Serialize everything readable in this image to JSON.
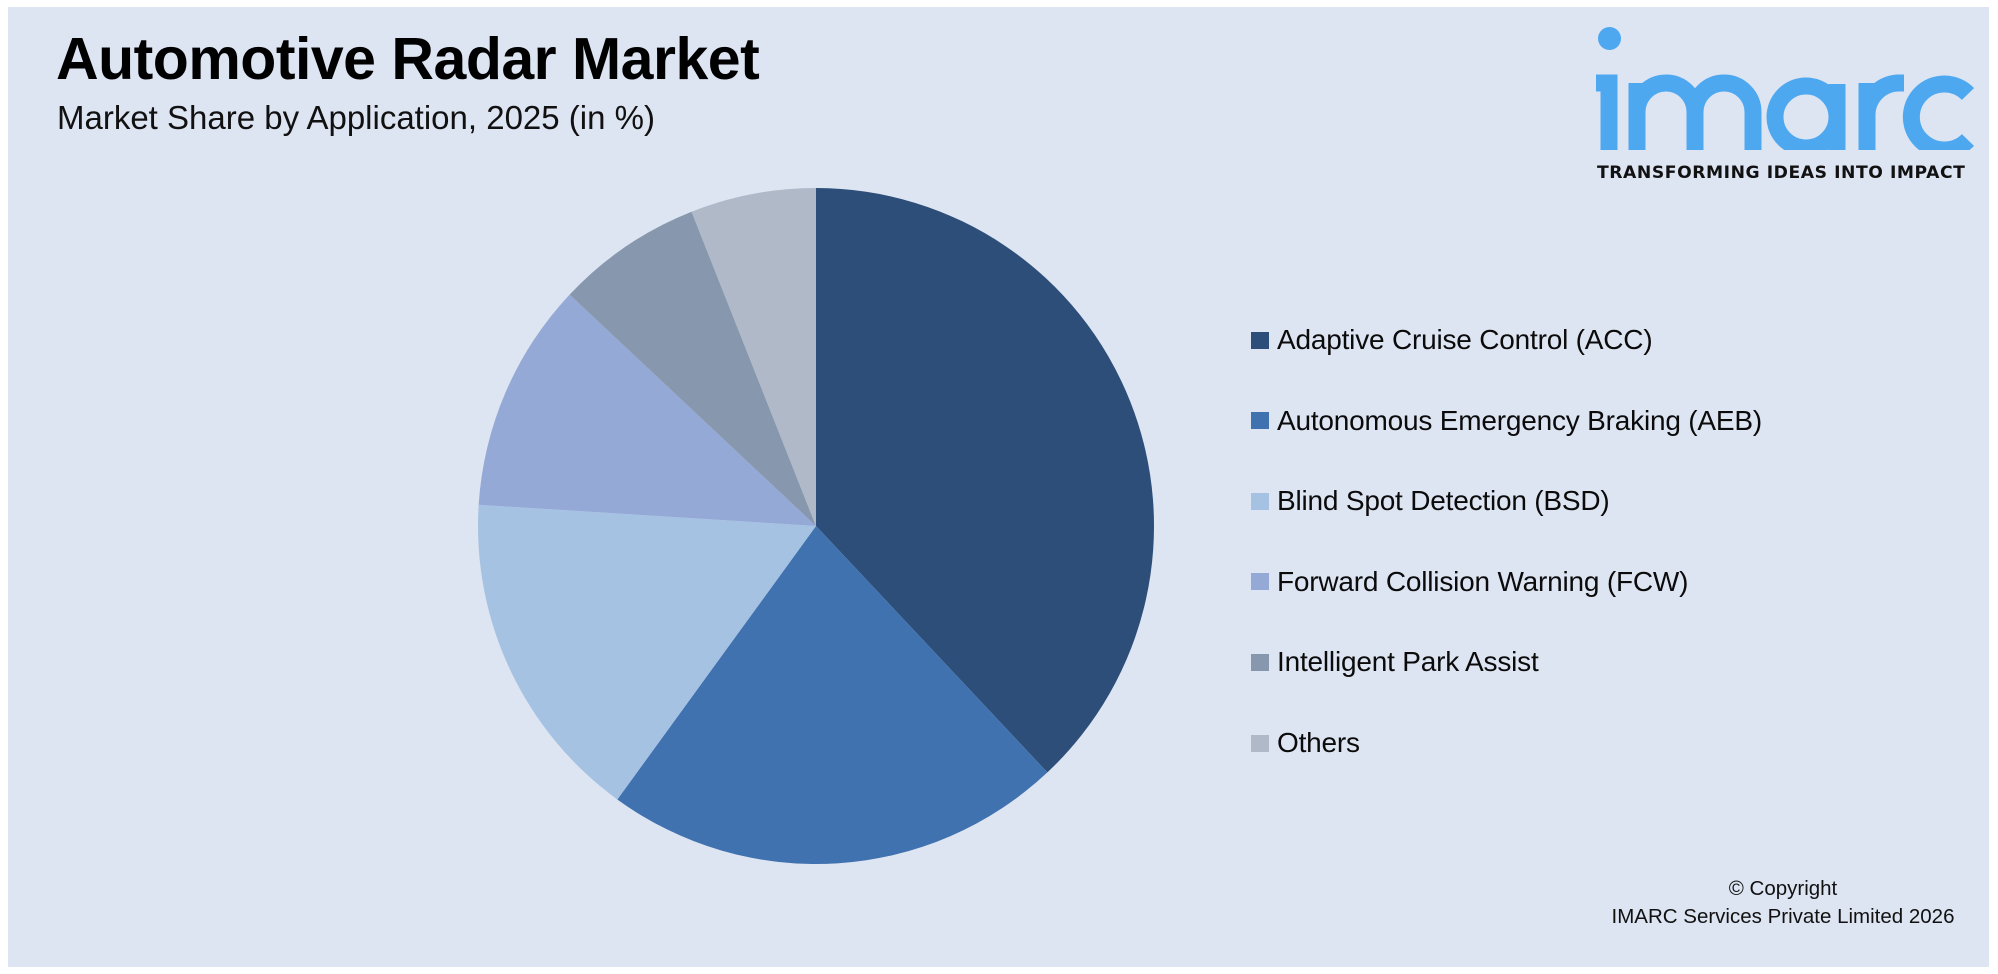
{
  "header": {
    "title": "Automotive Radar Market",
    "subtitle": "Market Share by Application, 2025 (in %)"
  },
  "logo": {
    "wordmark": "imarc",
    "tagline": "TRANSFORMING IDEAS INTO IMPACT",
    "color": "#4ea8f0"
  },
  "legend": {
    "items": [
      {
        "label": "Adaptive Cruise Control (ACC)",
        "color": "#2c4e78"
      },
      {
        "label": "Autonomous Emergency Braking (AEB)",
        "color": "#4072b0"
      },
      {
        "label": "Blind Spot Detection (BSD)",
        "color": "#a6c2e2"
      },
      {
        "label": "Forward Collision Warning (FCW)",
        "color": "#95a9d7"
      },
      {
        "label": "Intelligent Park Assist",
        "color": "#8797ae"
      },
      {
        "label": "Others",
        "color": "#afb9c8"
      }
    ]
  },
  "footer": {
    "copyright_line1": "© Copyright",
    "copyright_line2": "IMARC Services Private Limited 2026"
  },
  "colors": {
    "background": "#dde4f2",
    "title": "#000000"
  },
  "chart_data": {
    "type": "pie",
    "title": "Automotive Radar Market",
    "subtitle": "Market Share by Application, 2025 (in %)",
    "categories": [
      "Adaptive Cruise Control (ACC)",
      "Autonomous Emergency Braking (AEB)",
      "Blind Spot Detection (BSD)",
      "Forward Collision Warning (FCW)",
      "Intelligent Park Assist",
      "Others"
    ],
    "values": [
      38,
      22,
      16,
      11,
      7,
      6
    ],
    "unit": "%",
    "colors": [
      "#2c4e78",
      "#4072b0",
      "#a6c2e2",
      "#95a9d7",
      "#8797ae",
      "#afb9c8"
    ],
    "start_angle": "12 o'clock",
    "direction": "clockwise",
    "data_labels": false,
    "legend_position": "right"
  }
}
